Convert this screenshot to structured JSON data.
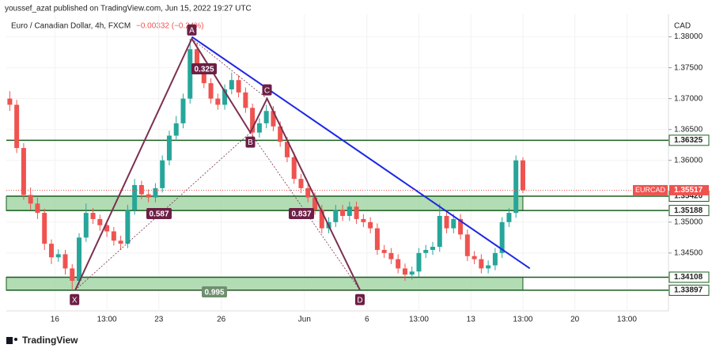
{
  "header": {
    "author": "youssef_azat published on TradingView.com, Jun 15, 2022 19:27 UTC"
  },
  "chart_data": {
    "type": "candlestick",
    "title": "Euro / Canadian Dollar, 4h, FXCM",
    "change": "−0.00332 (−0.24%)",
    "currency": "CAD",
    "up_color": "#26a69a",
    "down_color": "#ef5350",
    "x": [
      0,
      2,
      4,
      6,
      8,
      10,
      12,
      14,
      16,
      18,
      20,
      22,
      24,
      26,
      28,
      30,
      32,
      34,
      36,
      38,
      40,
      42,
      44,
      46,
      48,
      50,
      52,
      54,
      56,
      58,
      60,
      62,
      64,
      66,
      68,
      70,
      72,
      74,
      76,
      78,
      80,
      82,
      84,
      86,
      88,
      90,
      92,
      94,
      96,
      98,
      100,
      102,
      104,
      106,
      108,
      110,
      112,
      114,
      116,
      118,
      120,
      122,
      124,
      126,
      128,
      130,
      132,
      134,
      136,
      138,
      140,
      142,
      144,
      146,
      148
    ],
    "open": [
      1.37,
      1.369,
      1.362,
      1.3544,
      1.353,
      1.3515,
      1.3465,
      1.3443,
      1.3448,
      1.3425,
      1.3405,
      1.3475,
      1.3515,
      1.3505,
      1.3495,
      1.3485,
      1.347,
      1.3465,
      1.352,
      1.356,
      1.3545,
      1.354,
      1.3555,
      1.36,
      1.364,
      1.366,
      1.37,
      1.378,
      1.375,
      1.3725,
      1.37,
      1.369,
      1.3715,
      1.373,
      1.371,
      1.3685,
      1.3645,
      1.366,
      1.368,
      1.3655,
      1.363,
      1.3605,
      1.357,
      1.3555,
      1.354,
      1.352,
      1.349,
      1.35,
      1.352,
      1.351,
      1.3525,
      1.3505,
      1.35,
      1.349,
      1.3455,
      1.345,
      1.344,
      1.3425,
      1.3415,
      1.342,
      1.345,
      1.3455,
      1.346,
      1.351,
      1.349,
      1.3505,
      1.348,
      1.3445,
      1.344,
      1.3425,
      1.343,
      1.345,
      1.35,
      1.3515,
      1.36
    ],
    "high": [
      1.3712,
      1.3698,
      1.3628,
      1.3556,
      1.354,
      1.3522,
      1.3472,
      1.3456,
      1.3455,
      1.3432,
      1.3482,
      1.353,
      1.3523,
      1.3512,
      1.3503,
      1.3492,
      1.3478,
      1.3528,
      1.357,
      1.3567,
      1.3553,
      1.3563,
      1.3608,
      1.3648,
      1.3672,
      1.3708,
      1.3797,
      1.379,
      1.3758,
      1.3733,
      1.3708,
      1.3723,
      1.3742,
      1.3738,
      1.3718,
      1.3692,
      1.3668,
      1.369,
      1.3688,
      1.3663,
      1.3638,
      1.3613,
      1.3578,
      1.3563,
      1.3548,
      1.3528,
      1.3508,
      1.3528,
      1.3528,
      1.3533,
      1.3533,
      1.3513,
      1.3508,
      1.3498,
      1.3463,
      1.3458,
      1.3448,
      1.3433,
      1.3428,
      1.3458,
      1.3463,
      1.3468,
      1.353,
      1.3518,
      1.3513,
      1.3513,
      1.3488,
      1.3453,
      1.3448,
      1.3438,
      1.3458,
      1.3508,
      1.3523,
      1.3608,
      1.3605
    ],
    "low": [
      1.368,
      1.3612,
      1.3536,
      1.352,
      1.3505,
      1.3455,
      1.3432,
      1.3436,
      1.3415,
      1.339,
      1.3398,
      1.3468,
      1.3497,
      1.3486,
      1.3476,
      1.3462,
      1.3455,
      1.3458,
      1.3512,
      1.3537,
      1.3532,
      1.3532,
      1.3548,
      1.3592,
      1.3632,
      1.3652,
      1.3692,
      1.3742,
      1.3717,
      1.3692,
      1.3682,
      1.3682,
      1.3707,
      1.3702,
      1.3677,
      1.3637,
      1.3637,
      1.3652,
      1.3647,
      1.3622,
      1.3597,
      1.3562,
      1.3547,
      1.3532,
      1.3512,
      1.3482,
      1.3482,
      1.3492,
      1.3502,
      1.3502,
      1.3497,
      1.3492,
      1.3482,
      1.3447,
      1.3442,
      1.3432,
      1.3417,
      1.3405,
      1.3407,
      1.3412,
      1.3442,
      1.3447,
      1.3452,
      1.3482,
      1.3482,
      1.3472,
      1.3437,
      1.3432,
      1.3417,
      1.3417,
      1.3422,
      1.3442,
      1.3492,
      1.3507,
      1.3547
    ],
    "close": [
      1.369,
      1.362,
      1.3544,
      1.353,
      1.3515,
      1.3465,
      1.3443,
      1.3448,
      1.3425,
      1.3405,
      1.3475,
      1.3515,
      1.3505,
      1.3495,
      1.3485,
      1.347,
      1.3465,
      1.352,
      1.356,
      1.3545,
      1.354,
      1.3555,
      1.36,
      1.364,
      1.366,
      1.37,
      1.378,
      1.375,
      1.3725,
      1.37,
      1.369,
      1.3715,
      1.373,
      1.371,
      1.3685,
      1.3645,
      1.366,
      1.368,
      1.3655,
      1.363,
      1.3605,
      1.357,
      1.3555,
      1.354,
      1.352,
      1.349,
      1.35,
      1.352,
      1.351,
      1.3525,
      1.3505,
      1.35,
      1.349,
      1.3455,
      1.345,
      1.344,
      1.3425,
      1.3415,
      1.342,
      1.345,
      1.3455,
      1.346,
      1.351,
      1.349,
      1.3505,
      1.348,
      1.3445,
      1.344,
      1.3425,
      1.343,
      1.345,
      1.35,
      1.3515,
      1.36,
      1.35517
    ],
    "xlim": [
      -1,
      190
    ],
    "xticks": [
      {
        "value": 13,
        "label": "16"
      },
      {
        "value": 28,
        "label": "13:00"
      },
      {
        "value": 43,
        "label": "23"
      },
      {
        "value": 61,
        "label": "26"
      },
      {
        "value": 85,
        "label": "Jun"
      },
      {
        "value": 103,
        "label": "6"
      },
      {
        "value": 118,
        "label": "13:00"
      },
      {
        "value": 133,
        "label": "13"
      },
      {
        "value": 148,
        "label": "13:00"
      },
      {
        "value": 163,
        "label": "20"
      },
      {
        "value": 178,
        "label": "13:00"
      }
    ],
    "ylim": [
      1.33563,
      1.38366
    ],
    "yticks": [
      {
        "value": 1.345,
        "label": "1.34500"
      },
      {
        "value": 1.35,
        "label": "1.35000"
      },
      {
        "value": 1.36,
        "label": "1.36000"
      },
      {
        "value": 1.365,
        "label": "1.36500"
      },
      {
        "value": 1.37,
        "label": "1.37000"
      },
      {
        "value": 1.375,
        "label": "1.37500"
      },
      {
        "value": 1.38,
        "label": "1.38000"
      }
    ],
    "levels": [
      1.36325,
      {
        "value": 1.3542,
        "label": "1.35420"
      },
      1.35188,
      1.34108,
      1.33897
    ],
    "level_color": "#1b5e20",
    "zones": [
      {
        "top": 1.3542,
        "bottom": 1.35188,
        "end": 148
      },
      {
        "top": 1.34108,
        "bottom": 1.33897,
        "end": 148
      }
    ],
    "zone_color": "#a5d6a7",
    "last_price": {
      "name": "EURCAD",
      "value": 1.35517,
      "color": "#ef5350"
    },
    "pattern": {
      "labels": [
        "X",
        "A",
        "B",
        "C",
        "D"
      ],
      "x": [
        18.9,
        52.5,
        69.4,
        74.2,
        101
      ],
      "y": [
        1.339,
        1.3797,
        1.3645,
        1.37,
        1.339
      ],
      "color": "#7b3050",
      "ratios": [
        "0.325",
        "0.587",
        "0.837",
        "0.995"
      ]
    },
    "trendline": {
      "x": [
        52.5,
        150
      ],
      "y": [
        1.38,
        1.3425
      ],
      "color": "#1e28e6"
    }
  },
  "footer": {
    "brand": "TradingView"
  }
}
